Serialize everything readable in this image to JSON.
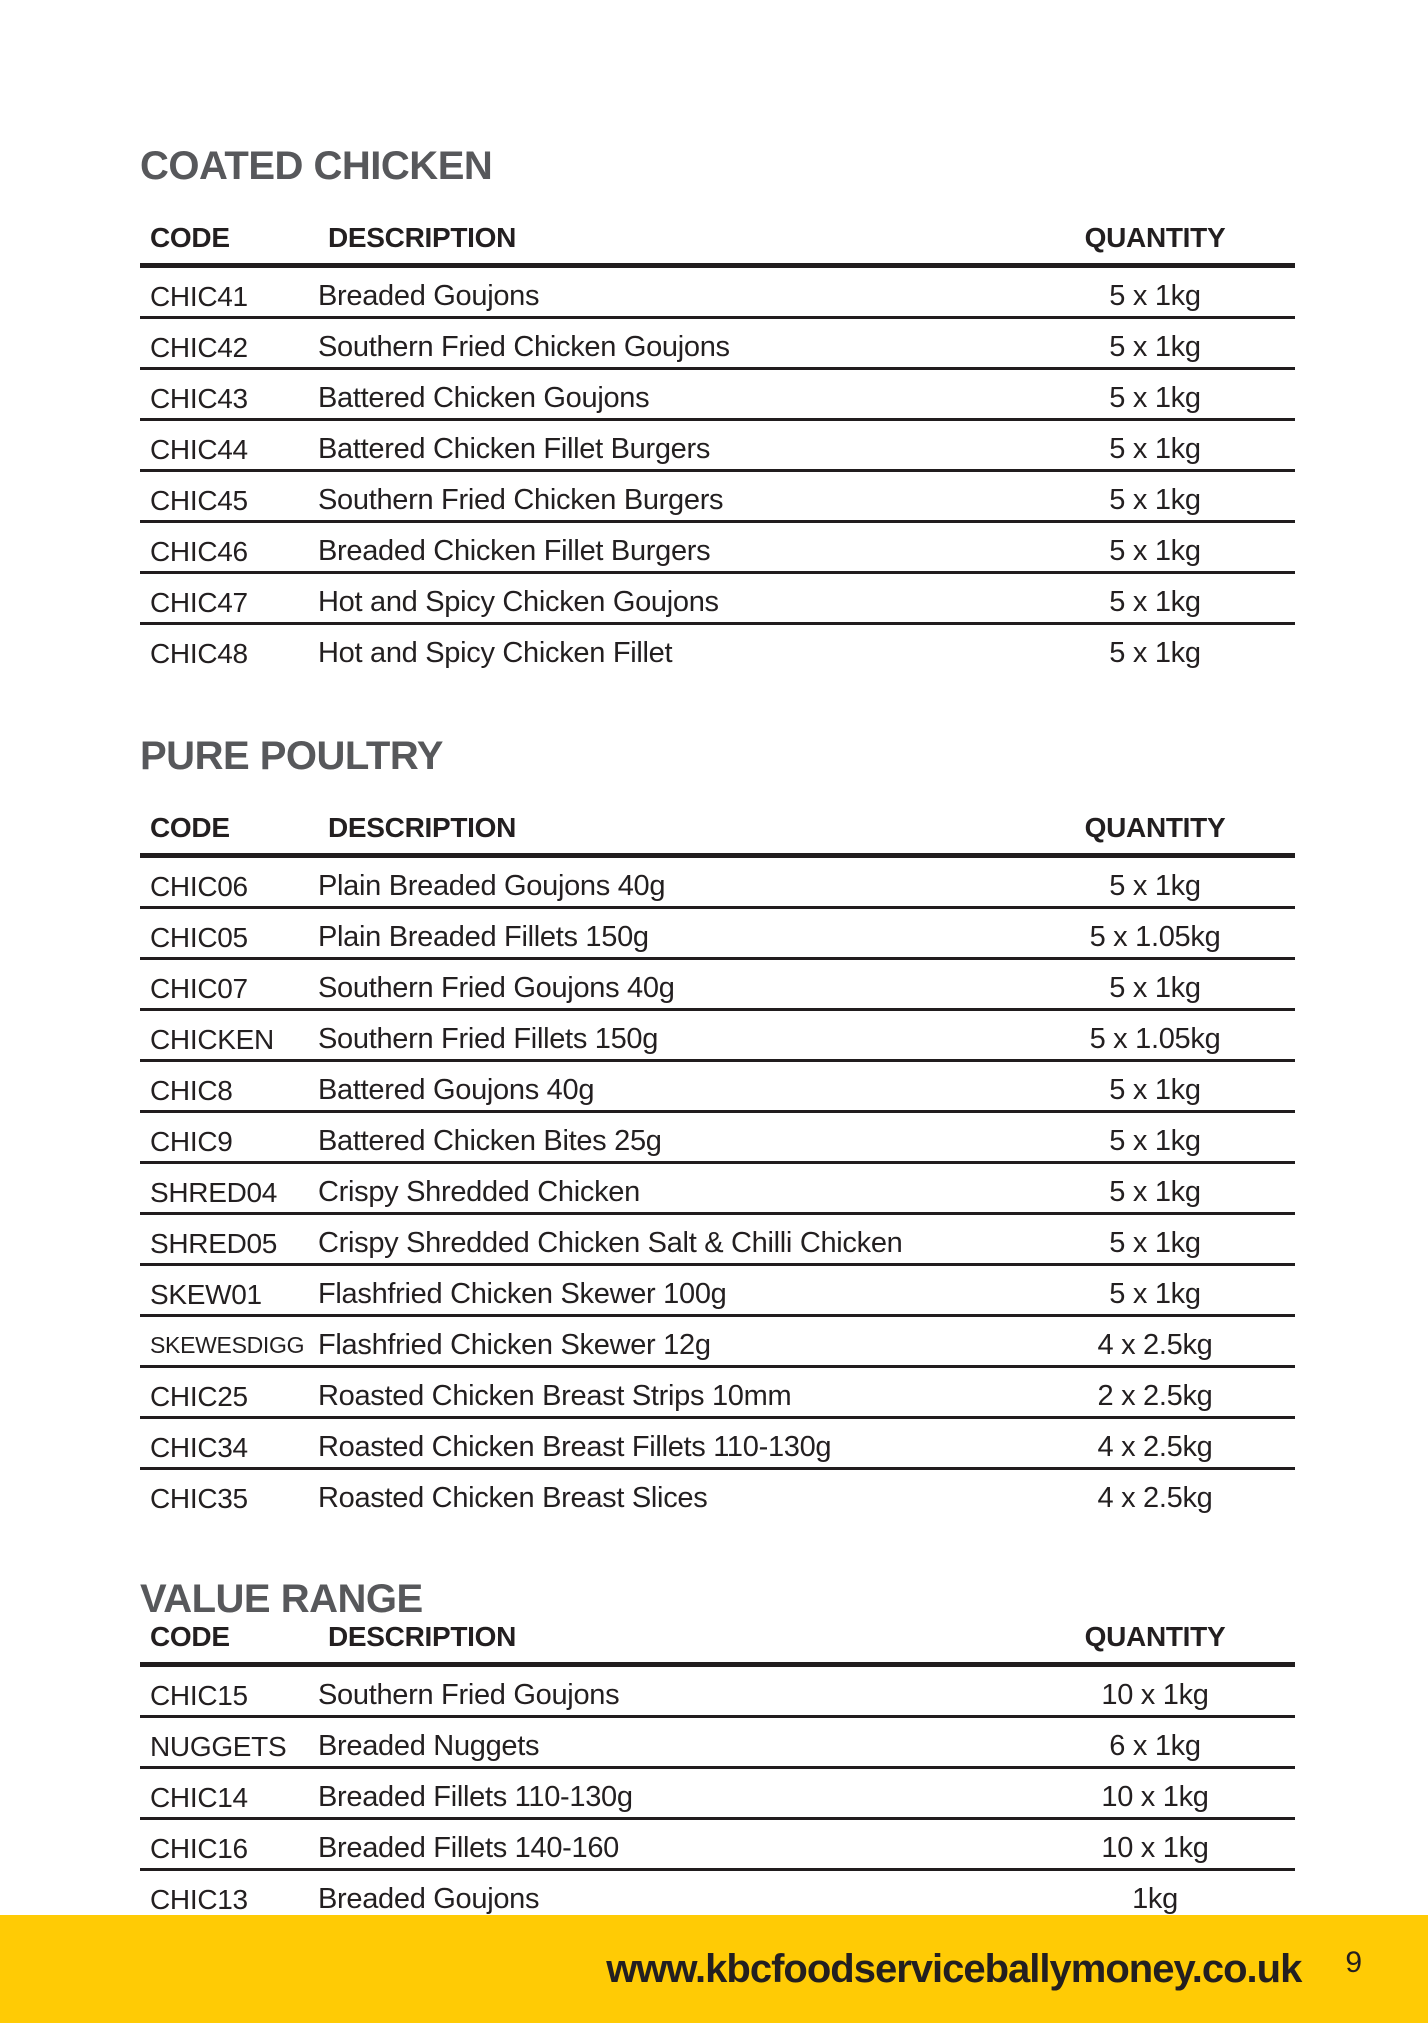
{
  "page": {
    "number": "9",
    "website": "www.kbcfoodserviceballymoney.co.uk"
  },
  "table_headers": {
    "code": "CODE",
    "description": "DESCRIPTION",
    "quantity": "QUANTITY"
  },
  "colors": {
    "footer_yellow": "#FFCB05",
    "heading_gray": "#57585B",
    "text_dark": "#231F20"
  },
  "sections": [
    {
      "title": "COATED CHICKEN",
      "tight_header": false,
      "last_row_divider": false,
      "rows": [
        {
          "code": "CHIC41",
          "description": "Breaded Goujons",
          "quantity": "5 x 1kg"
        },
        {
          "code": "CHIC42",
          "description": "Southern Fried Chicken Goujons",
          "quantity": "5 x 1kg"
        },
        {
          "code": "CHIC43",
          "description": "Battered Chicken Goujons",
          "quantity": "5 x 1kg"
        },
        {
          "code": "CHIC44",
          "description": "Battered Chicken Fillet Burgers",
          "quantity": "5 x 1kg"
        },
        {
          "code": "CHIC45",
          "description": "Southern Fried Chicken Burgers",
          "quantity": "5 x 1kg"
        },
        {
          "code": "CHIC46",
          "description": "Breaded Chicken Fillet Burgers",
          "quantity": "5 x 1kg"
        },
        {
          "code": "CHIC47",
          "description": "Hot and Spicy Chicken Goujons",
          "quantity": "5 x 1kg"
        },
        {
          "code": "CHIC48",
          "description": "Hot and Spicy Chicken Fillet",
          "quantity": "5 x 1kg"
        }
      ]
    },
    {
      "title": "PURE POULTRY",
      "tight_header": false,
      "last_row_divider": false,
      "rows": [
        {
          "code": "CHIC06",
          "description": "Plain Breaded Goujons 40g",
          "quantity": "5 x 1kg"
        },
        {
          "code": "CHIC05",
          "description": "Plain Breaded Fillets 150g",
          "quantity": "5 x 1.05kg"
        },
        {
          "code": "CHIC07",
          "description": "Southern Fried Goujons 40g",
          "quantity": "5 x 1kg"
        },
        {
          "code": "CHICKEN",
          "description": "Southern Fried Fillets 150g",
          "quantity": "5 x 1.05kg"
        },
        {
          "code": "CHIC8",
          "description": "Battered Goujons 40g",
          "quantity": "5 x 1kg"
        },
        {
          "code": "CHIC9",
          "description": "Battered Chicken Bites 25g",
          "quantity": "5 x 1kg"
        },
        {
          "code": "SHRED04",
          "description": "Crispy Shredded Chicken",
          "quantity": "5 x 1kg"
        },
        {
          "code": "SHRED05",
          "description": "Crispy Shredded Chicken Salt & Chilli Chicken",
          "quantity": "5 x 1kg"
        },
        {
          "code": "SKEW01",
          "description": "Flashfried Chicken Skewer 100g",
          "quantity": "5 x 1kg"
        },
        {
          "code": "SKEWESDIGG",
          "description": "Flashfried Chicken Skewer 12g",
          "quantity": "4 x 2.5kg"
        },
        {
          "code": "CHIC25",
          "description": "Roasted Chicken Breast Strips 10mm",
          "quantity": "2 x 2.5kg"
        },
        {
          "code": "CHIC34",
          "description": "Roasted Chicken Breast Fillets 110-130g",
          "quantity": "4 x 2.5kg"
        },
        {
          "code": "CHIC35",
          "description": "Roasted Chicken Breast Slices",
          "quantity": "4 x 2.5kg"
        }
      ]
    },
    {
      "title": "VALUE RANGE",
      "tight_header": true,
      "last_row_divider": true,
      "rows": [
        {
          "code": "CHIC15",
          "description": "Southern Fried Goujons",
          "quantity": "10 x 1kg"
        },
        {
          "code": "NUGGETS",
          "description": "Breaded Nuggets",
          "quantity": "6 x 1kg"
        },
        {
          "code": "CHIC14",
          "description": "Breaded Fillets 110-130g",
          "quantity": "10 x 1kg"
        },
        {
          "code": "CHIC16",
          "description": "Breaded Fillets 140-160",
          "quantity": "10 x 1kg"
        },
        {
          "code": "CHIC13",
          "description": "Breaded Goujons",
          "quantity": "1kg"
        }
      ]
    }
  ]
}
